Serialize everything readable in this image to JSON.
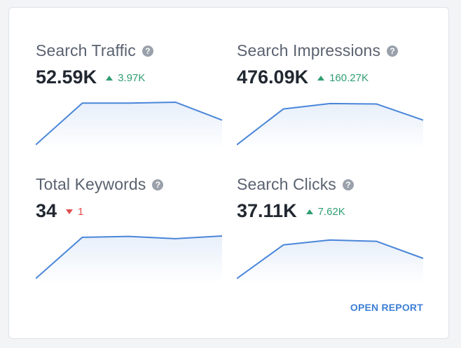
{
  "metrics": [
    {
      "title": "Search Traffic",
      "value": "52.59K",
      "delta": "3.97K",
      "direction": "up",
      "trend": [
        0.05,
        0.98,
        0.98,
        1.0,
        0.6
      ]
    },
    {
      "title": "Search Impressions",
      "value": "476.09K",
      "delta": "160.27K",
      "direction": "up",
      "trend": [
        0.05,
        0.85,
        0.97,
        0.96,
        0.6
      ]
    },
    {
      "title": "Total Keywords",
      "value": "34",
      "delta": "1",
      "direction": "down",
      "trend": [
        0.05,
        0.97,
        0.99,
        0.94,
        1.0
      ]
    },
    {
      "title": "Search Clicks",
      "value": "37.11K",
      "delta": "7.62K",
      "direction": "up",
      "trend": [
        0.05,
        0.8,
        0.91,
        0.88,
        0.5
      ]
    }
  ],
  "help_icon_glyph": "?",
  "help_icon": "question-circle-icon",
  "footer": {
    "open_report_label": "OPEN REPORT"
  },
  "colors": {
    "line": "#4a86d9",
    "up": "#2f9e73",
    "down": "#e14d4d",
    "link": "#3d7fd6"
  }
}
